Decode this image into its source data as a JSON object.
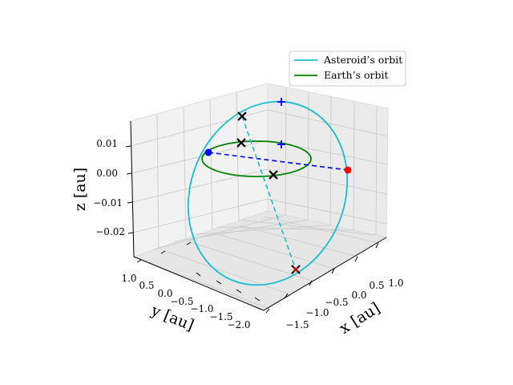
{
  "chart_data": {
    "type": "line",
    "projection": "3d",
    "xlabel": "x [au]",
    "ylabel": "y [au]",
    "zlabel": "z [au]",
    "x_ticks": [
      "−1.5",
      "−1.0",
      "−0.5",
      "0.0",
      "0.5",
      "1.0"
    ],
    "y_ticks": [
      "1.0",
      "0.5",
      "0.0",
      "−0.5",
      "−1.0",
      "−1.5",
      "−2.0"
    ],
    "z_ticks": [
      "0.01",
      "0.00",
      "−0.01",
      "−0.02"
    ],
    "grid": true,
    "legend_position": "top-right",
    "series": [
      {
        "name": "Asteroid’s orbit",
        "color": "#17becf",
        "style": "solid"
      },
      {
        "name": "Earth’s orbit",
        "color": "#008000",
        "style": "solid"
      }
    ],
    "markers": [
      {
        "kind": "dot",
        "color": "#ff0000"
      },
      {
        "kind": "dot",
        "color": "#0000ff"
      },
      {
        "kind": "x",
        "color": "#000000"
      },
      {
        "kind": "x",
        "color": "#000000"
      },
      {
        "kind": "x",
        "color": "#000000"
      },
      {
        "kind": "x",
        "color": "#ff0000"
      },
      {
        "kind": "plus",
        "color": "#0000ff"
      },
      {
        "kind": "plus",
        "color": "#0000ff"
      }
    ],
    "lines": [
      {
        "style": "dashed",
        "color": "#0000ff"
      },
      {
        "style": "dashed",
        "color": "#17becf"
      }
    ]
  }
}
